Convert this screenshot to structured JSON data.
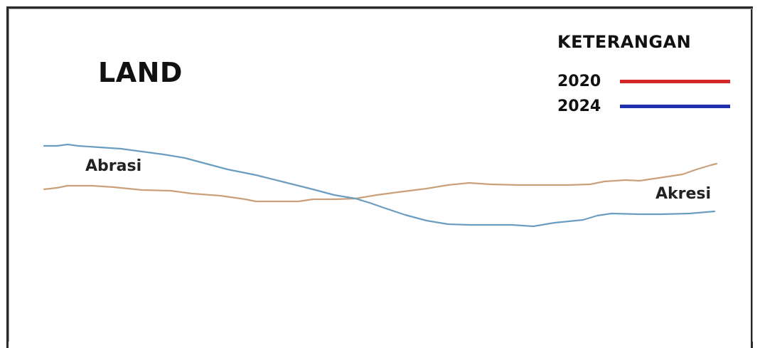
{
  "diagram": {
    "title": "LAND",
    "legend": {
      "title": "KETERANGAN",
      "items": [
        {
          "label": "2020",
          "color": "#d62828"
        },
        {
          "label": "2024",
          "color": "#1f2fb0"
        }
      ]
    },
    "annotations": {
      "left": "Abrasi",
      "right": "Akresi"
    },
    "line_colors": {
      "line_a": "#c9a07a",
      "line_b": "#6a9ec0"
    }
  }
}
